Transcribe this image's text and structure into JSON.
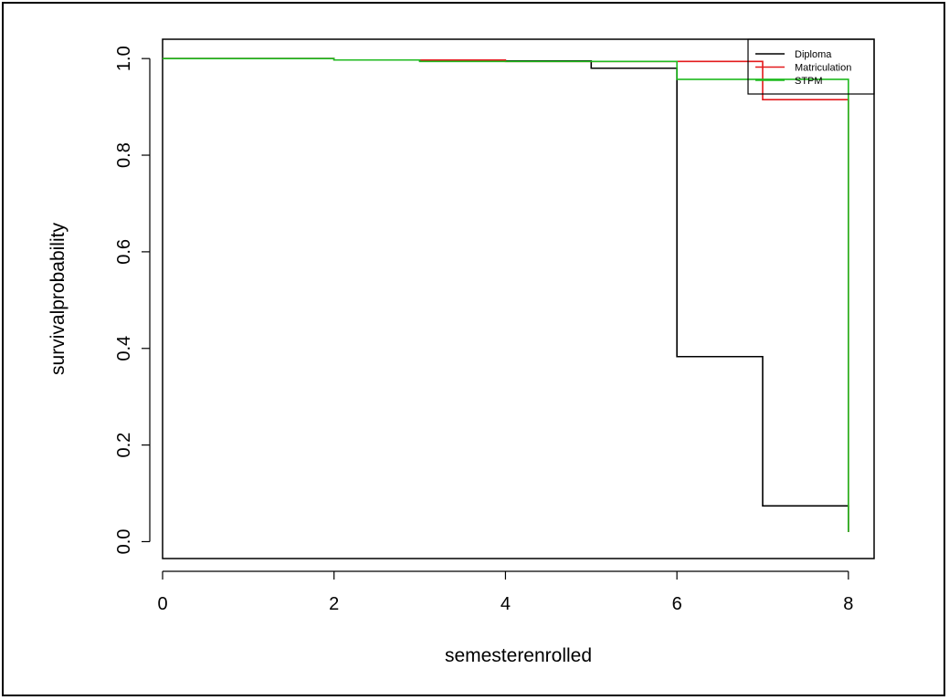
{
  "chart_data": {
    "type": "line",
    "step": true,
    "xlabel": "semesterenrolled",
    "ylabel": "survivalprobability",
    "xlim": [
      0,
      8.3
    ],
    "ylim": [
      -0.035,
      1.04
    ],
    "xticks": [
      0,
      2,
      4,
      6,
      8
    ],
    "yticks": [
      0.0,
      0.2,
      0.4,
      0.6,
      0.8,
      1.0
    ],
    "xtick_labels": [
      "0",
      "2",
      "4",
      "6",
      "8"
    ],
    "ytick_labels": [
      "0.0",
      "0.2",
      "0.4",
      "0.6",
      "0.8",
      "1.0"
    ],
    "legend_position": "top-right",
    "grid": false,
    "series": [
      {
        "name": "Diploma",
        "color": "#000000",
        "x": [
          0,
          2,
          3,
          5,
          6,
          7,
          8
        ],
        "y": [
          1.0,
          0.997,
          0.995,
          0.98,
          0.383,
          0.074,
          0.02
        ]
      },
      {
        "name": "Matriculation",
        "color": "#e31a1c",
        "x": [
          0,
          2,
          3,
          4,
          7,
          8
        ],
        "y": [
          1.0,
          0.997,
          0.997,
          0.994,
          0.915,
          0.02
        ]
      },
      {
        "name": "STPM",
        "color": "#1fba1f",
        "x": [
          0,
          2,
          3,
          6,
          8
        ],
        "y": [
          1.0,
          0.997,
          0.994,
          0.957,
          0.02
        ],
        "end_y": 0.952
      }
    ]
  }
}
